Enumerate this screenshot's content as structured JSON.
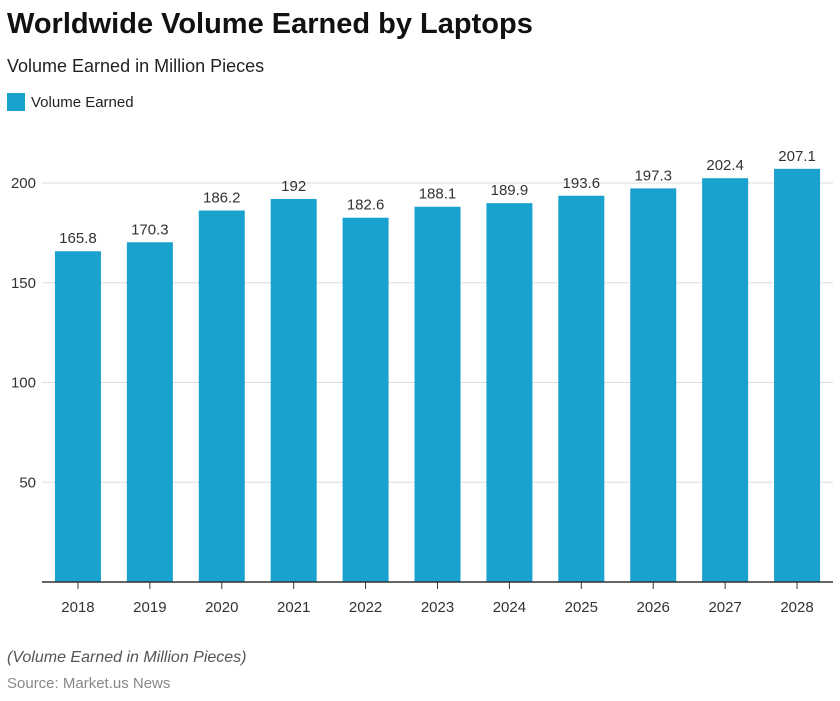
{
  "title": "Worldwide Volume Earned by Laptops",
  "subtitle": "Volume Earned in Million Pieces",
  "footnote": "(Volume Earned in Million Pieces)",
  "source": "Source: Market.us News",
  "colors": {
    "bar": "#1aa2cf",
    "grid": "#dddddd",
    "axis": "#333333"
  },
  "chart_data": {
    "type": "bar",
    "title": "Worldwide Volume Earned by Laptops",
    "subtitle": "Volume Earned in Million Pieces",
    "categories": [
      "2018",
      "2019",
      "2020",
      "2021",
      "2022",
      "2023",
      "2024",
      "2025",
      "2026",
      "2027",
      "2028"
    ],
    "series": [
      {
        "name": "Volume Earned",
        "values": [
          165.8,
          170.3,
          186.2,
          192,
          182.6,
          188.1,
          189.9,
          193.6,
          197.3,
          202.4,
          207.1
        ]
      }
    ],
    "labels": [
      "165.8",
      "170.3",
      "186.2",
      "192",
      "182.6",
      "188.1",
      "189.9",
      "193.6",
      "197.3",
      "202.4",
      "207.1"
    ],
    "yticks": [
      50,
      100,
      150,
      200
    ],
    "ylim": [
      0,
      210
    ],
    "grid": true,
    "legend": "top-left"
  }
}
